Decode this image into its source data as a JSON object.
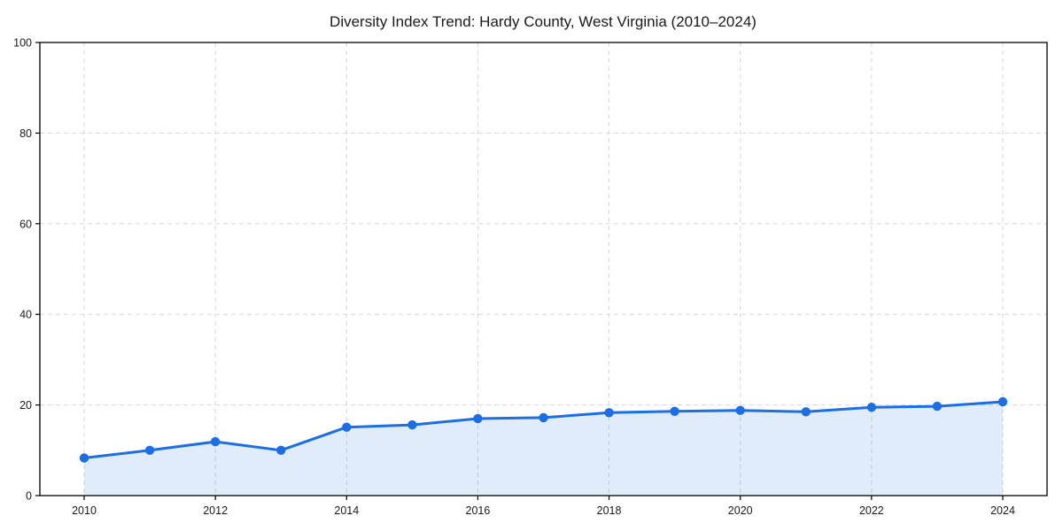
{
  "chart_data": {
    "type": "line",
    "title": "Diversity Index Trend: Hardy County, West Virginia (2010–2024)",
    "x": [
      2010,
      2011,
      2012,
      2013,
      2014,
      2015,
      2016,
      2017,
      2018,
      2019,
      2020,
      2021,
      2022,
      2023,
      2024
    ],
    "series": [
      {
        "name": "Diversity Index",
        "values": [
          8.3,
          10.0,
          11.9,
          10.0,
          15.1,
          15.6,
          17.0,
          17.2,
          18.3,
          18.6,
          18.8,
          18.5,
          19.5,
          19.7,
          20.7
        ]
      }
    ],
    "xlabel": "",
    "ylabel": "",
    "ylim": [
      0,
      100
    ],
    "yticks": [
      0,
      20,
      40,
      60,
      80,
      100
    ],
    "xticks": [
      2010,
      2012,
      2014,
      2016,
      2018,
      2020,
      2022,
      2024
    ],
    "grid": true,
    "grid_style": "dashed",
    "legend": false,
    "marker": "circle",
    "style": {
      "line_color": "#1b6ee3",
      "marker_color": "#1b6ee3",
      "fill_color": "#1b6ee3",
      "fill_opacity": 0.13,
      "grid_color": "#d8d8d8",
      "axis_color": "#000000",
      "tick_label_color": "#1a1a1a",
      "background": "#ffffff"
    }
  }
}
